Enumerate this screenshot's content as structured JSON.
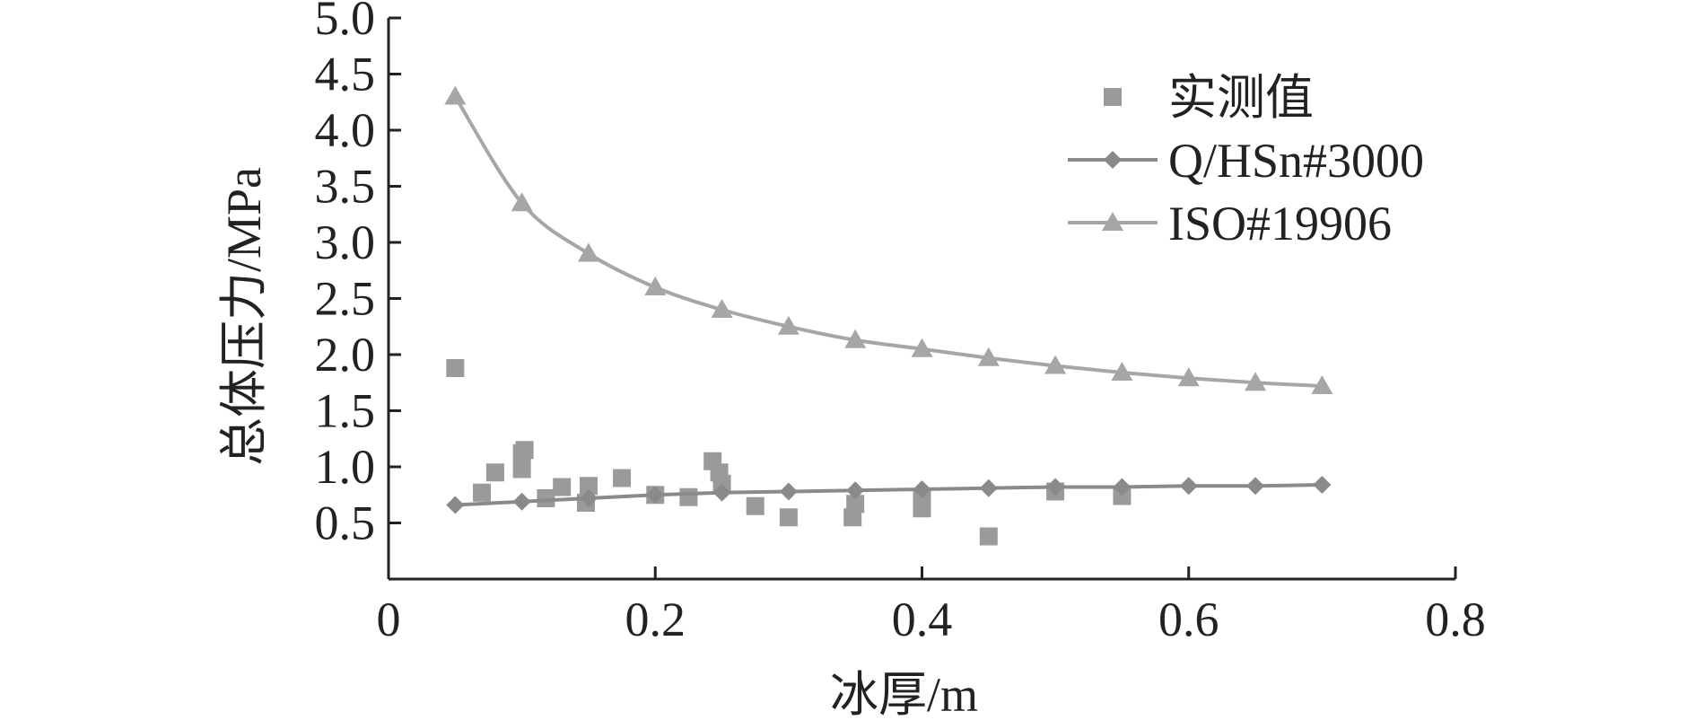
{
  "chart_data": {
    "type": "scatter",
    "title": "",
    "xlabel": "冰厚/m",
    "ylabel": "总体压力/MPa",
    "xlim": [
      0,
      0.8
    ],
    "ylim": [
      0,
      5.0
    ],
    "x_ticks": [
      "0",
      "0.2",
      "0.4",
      "0.6",
      "0.8"
    ],
    "y_ticks": [
      "0.5",
      "1.0",
      "1.5",
      "2.0",
      "2.5",
      "3.0",
      "3.5",
      "4.0",
      "4.5",
      "5.0"
    ],
    "grid": false,
    "legend_position": "top-right",
    "series": [
      {
        "name": "实测值",
        "kind": "scatter",
        "marker": "square",
        "color": "#9a9a9a",
        "x": [
          0.05,
          0.07,
          0.08,
          0.1,
          0.1,
          0.102,
          0.118,
          0.13,
          0.148,
          0.15,
          0.175,
          0.2,
          0.225,
          0.243,
          0.248,
          0.25,
          0.275,
          0.3,
          0.348,
          0.35,
          0.4,
          0.4,
          0.45,
          0.5,
          0.55
        ],
        "y": [
          1.88,
          0.77,
          0.95,
          0.98,
          1.12,
          1.15,
          0.72,
          0.82,
          0.68,
          0.83,
          0.9,
          0.75,
          0.73,
          1.05,
          0.95,
          0.85,
          0.65,
          0.55,
          0.55,
          0.67,
          0.72,
          0.63,
          0.38,
          0.78,
          0.74
        ]
      },
      {
        "name": "Q/HSn#3000",
        "kind": "line",
        "marker": "diamond",
        "color": "#8a8a8a",
        "x": [
          0.05,
          0.1,
          0.15,
          0.2,
          0.25,
          0.3,
          0.35,
          0.4,
          0.45,
          0.5,
          0.55,
          0.6,
          0.65,
          0.7
        ],
        "y": [
          0.66,
          0.69,
          0.72,
          0.75,
          0.77,
          0.78,
          0.79,
          0.8,
          0.81,
          0.82,
          0.82,
          0.83,
          0.83,
          0.84
        ]
      },
      {
        "name": "ISO#19906",
        "kind": "line",
        "marker": "triangle",
        "color": "#a6a6a6",
        "x": [
          0.05,
          0.1,
          0.15,
          0.2,
          0.25,
          0.3,
          0.35,
          0.4,
          0.45,
          0.5,
          0.55,
          0.6,
          0.65,
          0.7
        ],
        "y": [
          4.3,
          3.35,
          2.9,
          2.6,
          2.4,
          2.25,
          2.13,
          2.05,
          1.97,
          1.9,
          1.84,
          1.79,
          1.75,
          1.72
        ]
      }
    ]
  }
}
